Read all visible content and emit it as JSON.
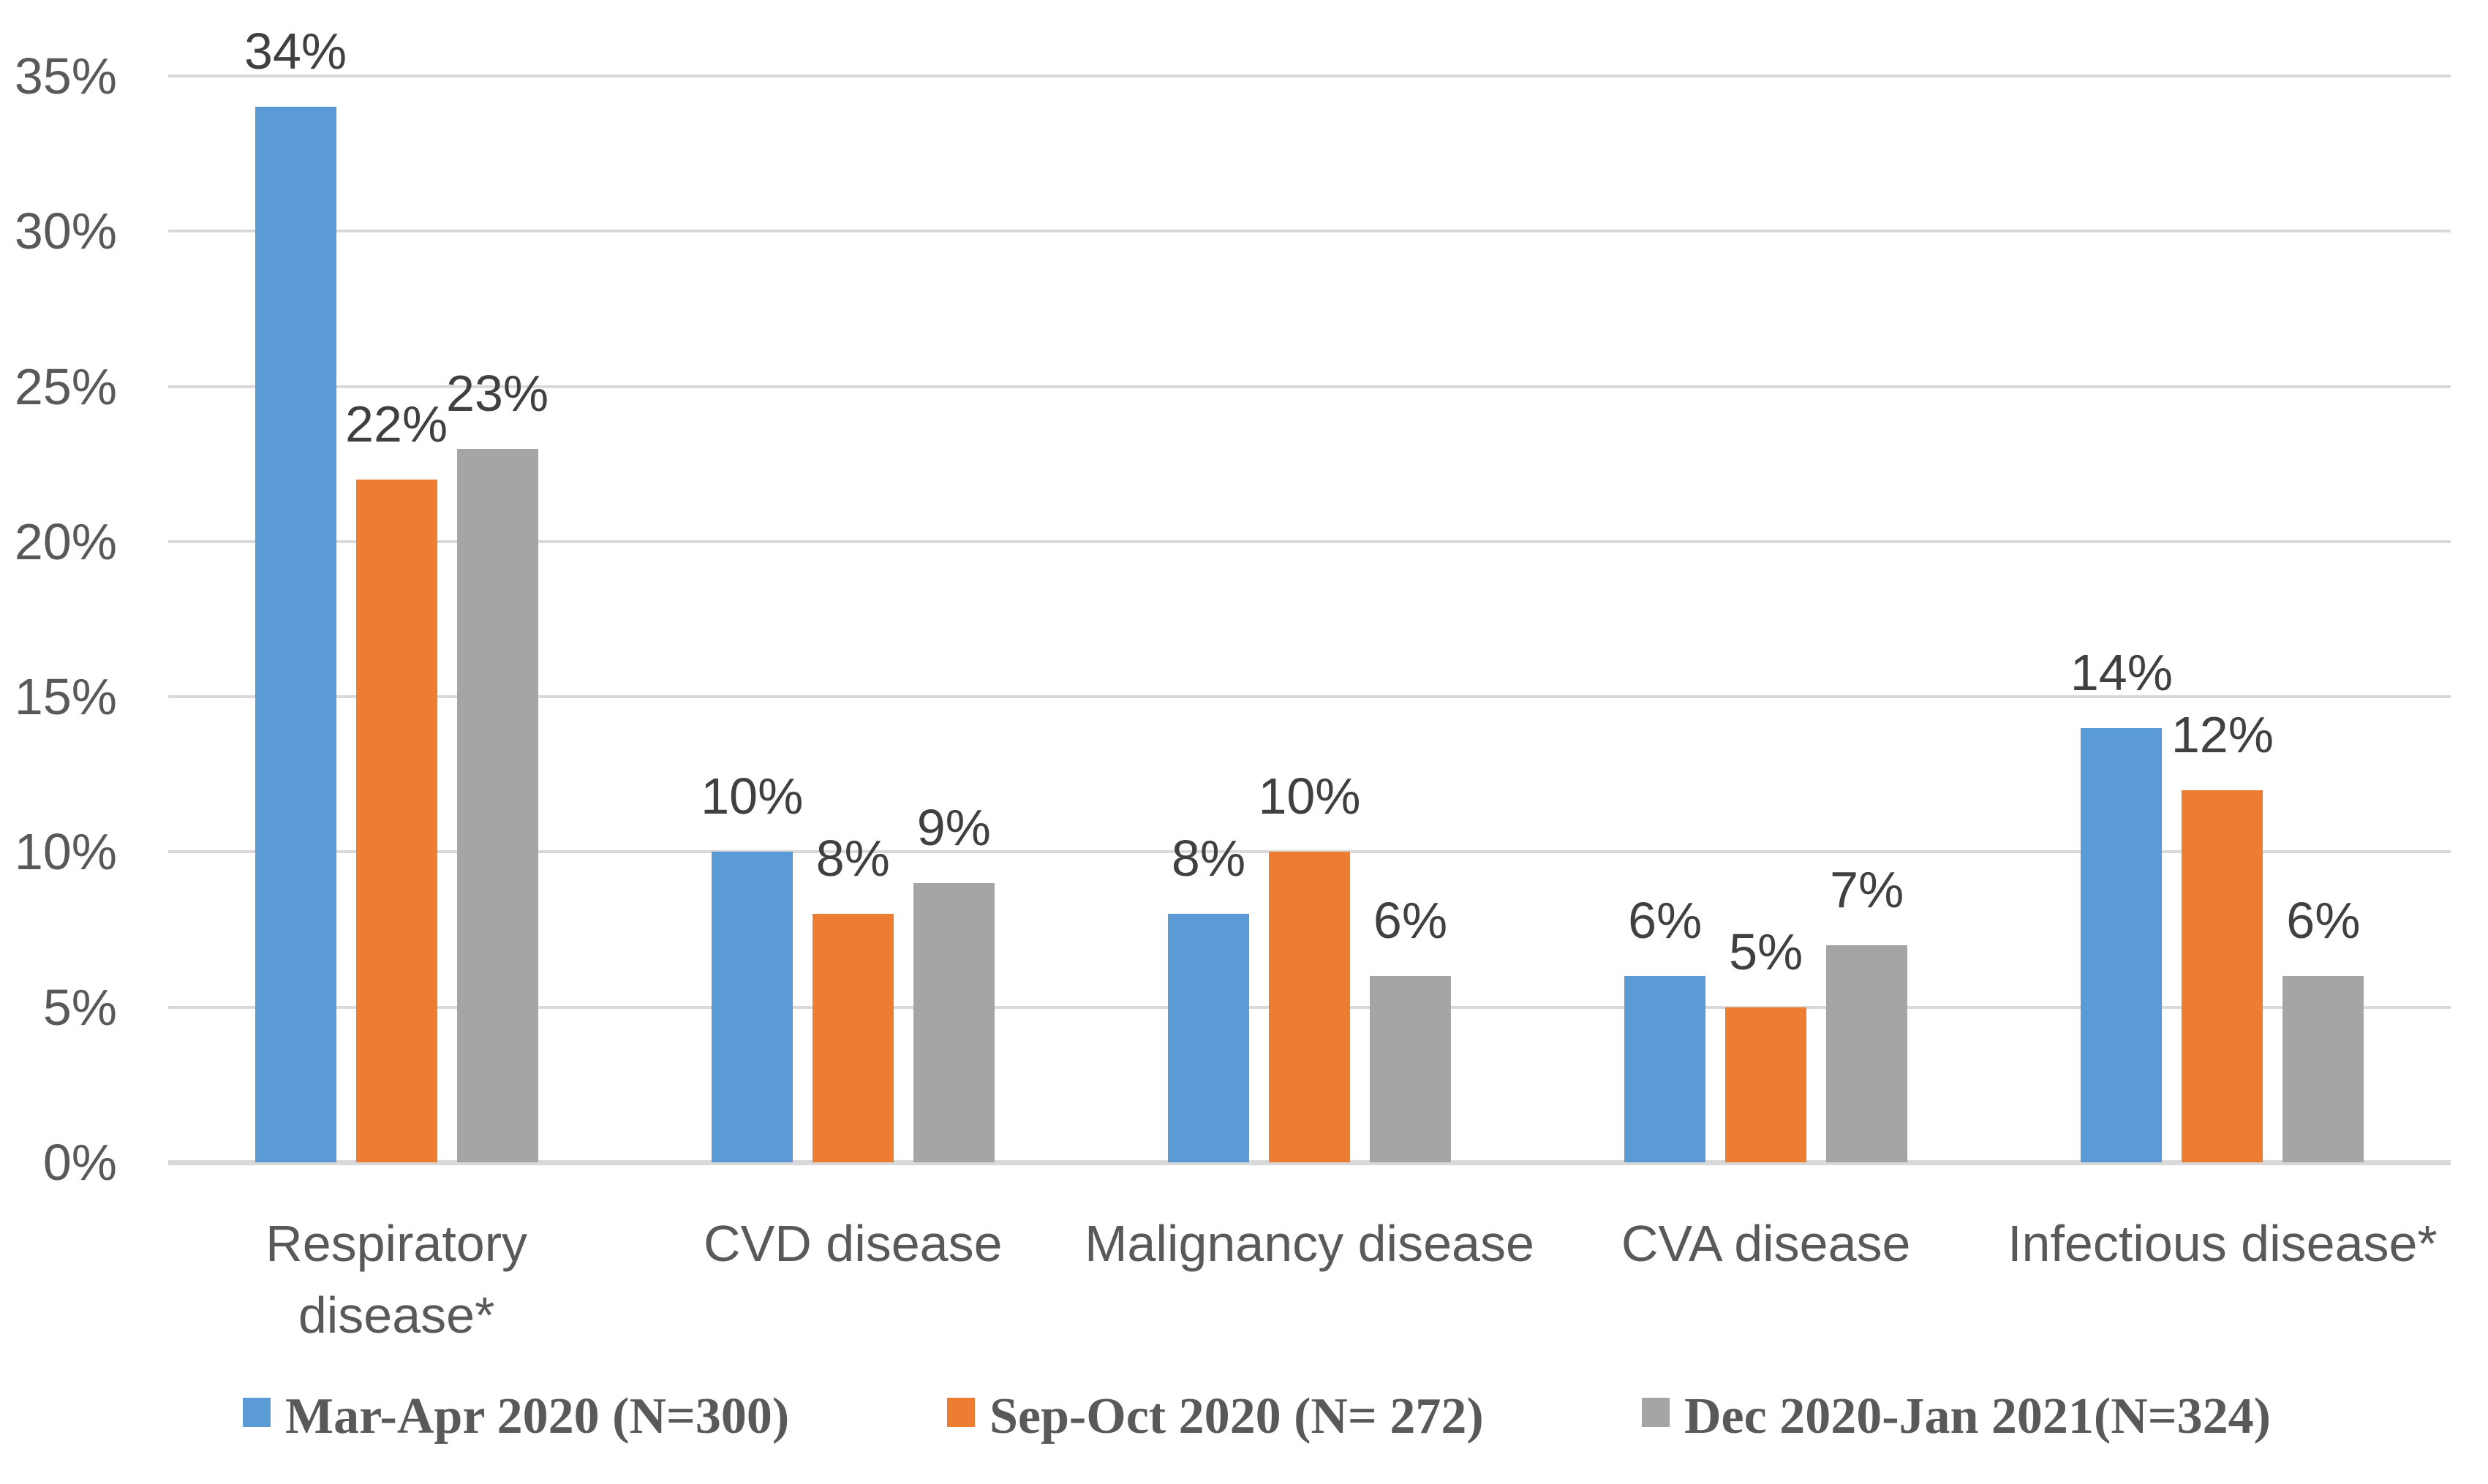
{
  "chart_data": {
    "type": "bar",
    "title": "",
    "categories": [
      "Respiratory\ndisease*",
      "CVD disease",
      "Malignancy disease",
      "CVA disease",
      "Infectious disease*"
    ],
    "series": [
      {
        "name": "Mar-Apr 2020 (N=300)",
        "color": "#5B9BD5",
        "values": [
          34,
          10,
          8,
          6,
          14
        ]
      },
      {
        "name": "Sep-Oct 2020 (N= 272)",
        "color": "#ED7D31",
        "values": [
          22,
          8,
          10,
          5,
          12
        ]
      },
      {
        "name": "Dec 2020-Jan 2021(N=324)",
        "color": "#A5A5A5",
        "values": [
          23,
          9,
          6,
          7,
          6
        ]
      }
    ],
    "data_labels": [
      [
        "34%",
        "10%",
        "8%",
        "6%",
        "14%"
      ],
      [
        "22%",
        "8%",
        "10%",
        "5%",
        "12%"
      ],
      [
        "23%",
        "9%",
        "6%",
        "7%",
        "6%"
      ]
    ],
    "y_axis": {
      "min": 0,
      "max": 35,
      "step": 5,
      "tick_labels": [
        "0%",
        "5%",
        "10%",
        "15%",
        "20%",
        "25%",
        "30%",
        "35%"
      ]
    },
    "xlabel": "",
    "ylabel": "",
    "grid": true,
    "legend_position": "bottom",
    "colors": {
      "gridline": "#D9D9D9",
      "axis_line": "#D9D9D9",
      "axis_text": "#595959",
      "data_label_text": "#404040",
      "legend_text": "#595959",
      "background": "#FFFFFF"
    }
  }
}
